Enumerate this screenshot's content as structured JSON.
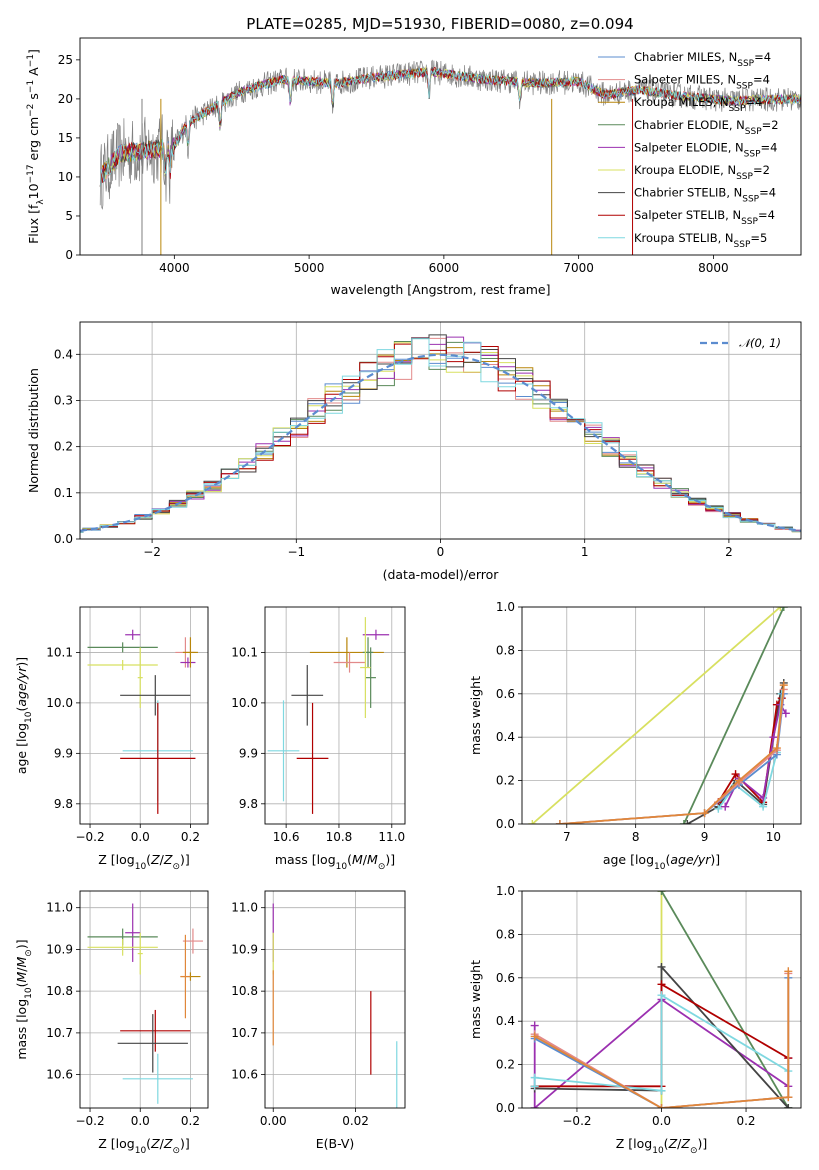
{
  "figure": {
    "title": "PLATE=0285, MJD=51930, FIBERID=0080, z=0.094"
  },
  "chart_data": [
    {
      "id": "spectrum",
      "type": "line",
      "title": "PLATE=0285, MJD=51930, FIBERID=0080, z=0.094",
      "xlabel": "wavelength [Angstrom, rest frame]",
      "ylabel": "Flux [f_λ 10^-17 erg cm^-2 s^-1 A^-1]",
      "xlim": [
        3300,
        8650
      ],
      "ylim": [
        0,
        27.8
      ],
      "xticks": [
        4000,
        5000,
        6000,
        7000,
        8000
      ],
      "yticks": [
        0,
        5,
        10,
        15,
        20,
        25
      ],
      "grid": false,
      "legend_position": "right",
      "data_color": "#808080",
      "series": [
        {
          "name": "Chabrier MILES, N_SSP=4",
          "color": "#5b8ccf"
        },
        {
          "name": "Salpeter MILES, N_SSP=4",
          "color": "#e28a8a"
        },
        {
          "name": "Kroupa MILES, N_SSP=4",
          "color": "#b8860b"
        },
        {
          "name": "Chabrier ELODIE, N_SSP=2",
          "color": "#5a8a5a"
        },
        {
          "name": "Salpeter ELODIE, N_SSP=4",
          "color": "#9b30b0"
        },
        {
          "name": "Kroupa ELODIE, N_SSP=2",
          "color": "#d8e060"
        },
        {
          "name": "Chabrier STELIB, N_SSP=4",
          "color": "#444444"
        },
        {
          "name": "Salpeter STELIB, N_SSP=4",
          "color": "#b00000"
        },
        {
          "name": "Kroupa STELIB, N_SSP=5",
          "color": "#7fd8e0"
        }
      ],
      "continuum": [
        [
          3450,
          10
        ],
        [
          3600,
          13
        ],
        [
          3850,
          13.5
        ],
        [
          4000,
          14
        ],
        [
          4100,
          17
        ],
        [
          4300,
          19
        ],
        [
          4500,
          21
        ],
        [
          4800,
          22.5
        ],
        [
          5200,
          22
        ],
        [
          5500,
          22.8
        ],
        [
          5900,
          23.5
        ],
        [
          6300,
          22.5
        ],
        [
          6700,
          22
        ],
        [
          7000,
          22.2
        ],
        [
          7200,
          20.5
        ],
        [
          7450,
          21.2
        ],
        [
          7700,
          20.5
        ],
        [
          8100,
          19.8
        ],
        [
          8650,
          20
        ]
      ]
    },
    {
      "id": "residuals",
      "type": "line",
      "xlabel": "(data-model)/error",
      "ylabel": "Normed distribution",
      "xlim": [
        -2.5,
        2.5
      ],
      "ylim": [
        0,
        0.47
      ],
      "xticks": [
        -2,
        -1,
        0,
        1,
        2
      ],
      "yticks": [
        0.0,
        0.1,
        0.2,
        0.3,
        0.4
      ],
      "grid": true,
      "legend": "𝒩(0, 1)",
      "legend_position": "top-right"
    },
    {
      "id": "age-vs-z",
      "type": "scatter",
      "xlabel": "Z [log10(Z/Z☉)]",
      "ylabel": "age [log10(age/yr)]",
      "xlim": [
        -0.24,
        0.27
      ],
      "ylim": [
        9.76,
        10.19
      ],
      "xticks": [
        -0.2,
        0.0,
        0.2
      ],
      "yticks": [
        9.8,
        9.9,
        10.0,
        10.1
      ],
      "grid": true,
      "points": [
        {
          "x": -0.03,
          "y": 10.135,
          "xerr": 0.03,
          "yerr": 0.01,
          "color": "#9b30b0"
        },
        {
          "x": -0.07,
          "y": 10.11,
          "xerr": 0.14,
          "yerr": 0.01,
          "color": "#5a8a5a"
        },
        {
          "x": 0.0,
          "y": 10.05,
          "xerr": 0.01,
          "yerr": 0.06,
          "color": "#d8e060"
        },
        {
          "x": -0.07,
          "y": 10.075,
          "xerr": 0.14,
          "yerr": 0.01,
          "color": "#d8e060"
        },
        {
          "x": 0.18,
          "y": 10.1,
          "xerr": 0.04,
          "yerr": 0.03,
          "color": "#e28a8a"
        },
        {
          "x": 0.19,
          "y": 10.08,
          "xerr": 0.03,
          "yerr": 0.01,
          "color": "#9b30b0"
        },
        {
          "x": 0.06,
          "y": 10.015,
          "xerr": 0.14,
          "yerr": 0.04,
          "color": "#444444"
        },
        {
          "x": 0.07,
          "y": 9.905,
          "xerr": 0.14,
          "yerr": 0.1,
          "color": "#7fd8e0"
        },
        {
          "x": 0.07,
          "y": 9.89,
          "xerr": 0.15,
          "yerr": 0.11,
          "color": "#b00000"
        },
        {
          "x": 0.2,
          "y": 10.1,
          "xerr": 0.03,
          "yerr": 0.03,
          "color": "#b8860b"
        }
      ]
    },
    {
      "id": "age-vs-mass",
      "type": "scatter",
      "xlabel": "mass [log10(M/M☉)]",
      "ylabel": "",
      "xlim": [
        10.52,
        11.05
      ],
      "ylim": [
        9.76,
        10.19
      ],
      "xticks": [
        10.6,
        10.8,
        11.0
      ],
      "yticks": [
        9.8,
        9.9,
        10.0,
        10.1
      ],
      "grid": true,
      "points": [
        {
          "x": 10.68,
          "y": 10.015,
          "xerr": 0.06,
          "yerr": 0.06,
          "color": "#444444"
        },
        {
          "x": 10.59,
          "y": 9.905,
          "xerr": 0.06,
          "yerr": 0.1,
          "color": "#7fd8e0"
        },
        {
          "x": 10.7,
          "y": 9.89,
          "xerr": 0.06,
          "yerr": 0.11,
          "color": "#b00000"
        },
        {
          "x": 10.83,
          "y": 10.1,
          "xerr": 0.14,
          "yerr": 0.03,
          "color": "#b8860b"
        },
        {
          "x": 10.84,
          "y": 10.08,
          "xerr": 0.06,
          "yerr": 0.02,
          "color": "#e28a8a"
        },
        {
          "x": 10.92,
          "y": 10.05,
          "xerr": 0.02,
          "yerr": 0.06,
          "color": "#5a8a5a"
        },
        {
          "x": 10.91,
          "y": 10.1,
          "xerr": 0.02,
          "yerr": 0.03,
          "color": "#5a8a5a"
        },
        {
          "x": 10.94,
          "y": 10.135,
          "xerr": 0.05,
          "yerr": 0.01,
          "color": "#9b30b0"
        },
        {
          "x": 10.9,
          "y": 10.07,
          "xerr": 0.02,
          "yerr": 0.1,
          "color": "#d8e060"
        }
      ]
    },
    {
      "id": "mass-weight-vs-age",
      "type": "line",
      "xlabel": "age [log10(age/yr)]",
      "ylabel": "mass weight",
      "xlim": [
        6.35,
        10.4
      ],
      "ylim": [
        0,
        1.0
      ],
      "xticks": [
        7,
        8,
        9,
        10
      ],
      "yticks": [
        0.0,
        0.2,
        0.4,
        0.6,
        0.8,
        1.0
      ],
      "grid": true,
      "series": [
        {
          "name": "Kroupa ELODIE",
          "color": "#d8e060",
          "x": [
            6.5,
            10.1
          ],
          "y": [
            0.0,
            1.0
          ]
        },
        {
          "name": "Chabrier ELODIE",
          "color": "#5a8a5a",
          "x": [
            8.7,
            10.15
          ],
          "y": [
            0.0,
            1.0
          ]
        },
        {
          "name": "Chabrier STELIB",
          "color": "#444444",
          "x": [
            8.75,
            9.2,
            9.45,
            9.85,
            10.1,
            10.15
          ],
          "y": [
            0.0,
            0.08,
            0.2,
            0.09,
            0.6,
            0.65
          ]
        },
        {
          "name": "Salpeter STELIB",
          "color": "#b00000",
          "x": [
            9.2,
            9.45,
            9.85,
            10.05,
            10.12
          ],
          "y": [
            0.1,
            0.23,
            0.1,
            0.55,
            0.58
          ]
        },
        {
          "name": "Salpeter ELODIE",
          "color": "#9b30b0",
          "x": [
            9.3,
            9.5,
            9.85,
            10.0,
            10.1,
            10.18
          ],
          "y": [
            0.08,
            0.21,
            0.12,
            0.4,
            0.55,
            0.51
          ]
        },
        {
          "name": "Kroupa STELIB",
          "color": "#7fd8e0",
          "x": [
            9.2,
            9.45,
            9.85,
            10.05,
            10.12
          ],
          "y": [
            0.07,
            0.18,
            0.08,
            0.33,
            0.6
          ]
        },
        {
          "name": "Chabrier MILES",
          "color": "#5b8ccf",
          "x": [
            6.9,
            9.0,
            9.5,
            10.05,
            10.15
          ],
          "y": [
            0.0,
            0.05,
            0.18,
            0.32,
            0.6
          ]
        },
        {
          "name": "Salpeter MILES",
          "color": "#e28a8a",
          "x": [
            6.9,
            9.0,
            9.5,
            10.05,
            10.15
          ],
          "y": [
            0.0,
            0.05,
            0.19,
            0.34,
            0.62
          ]
        },
        {
          "name": "Kroupa MILES",
          "color": "#e0873a",
          "x": [
            6.9,
            9.0,
            9.5,
            10.05,
            10.15
          ],
          "y": [
            0.0,
            0.05,
            0.2,
            0.35,
            0.64
          ]
        }
      ]
    },
    {
      "id": "mass-vs-z",
      "type": "scatter",
      "xlabel": "Z [log10(Z/Z☉)]",
      "ylabel": "mass [log10(M/M☉)]",
      "xlim": [
        -0.24,
        0.27
      ],
      "ylim": [
        10.52,
        11.04
      ],
      "xticks": [
        -0.2,
        0.0,
        0.2
      ],
      "yticks": [
        10.6,
        10.7,
        10.8,
        10.9,
        11.0
      ],
      "grid": true,
      "points": [
        {
          "x": -0.03,
          "y": 10.94,
          "xerr": 0.03,
          "yerr": 0.07,
          "color": "#9b30b0"
        },
        {
          "x": -0.07,
          "y": 10.93,
          "xerr": 0.14,
          "yerr": 0.02,
          "color": "#5a8a5a"
        },
        {
          "x": -0.07,
          "y": 10.905,
          "xerr": 0.14,
          "yerr": 0.02,
          "color": "#d8e060"
        },
        {
          "x": 0.0,
          "y": 10.89,
          "xerr": 0.01,
          "yerr": 0.05,
          "color": "#d8e060"
        },
        {
          "x": 0.21,
          "y": 10.92,
          "xerr": 0.04,
          "yerr": 0.03,
          "color": "#e28a8a"
        },
        {
          "x": 0.2,
          "y": 10.835,
          "xerr": 0.04,
          "yerr": 0.01,
          "color": "#b8860b"
        },
        {
          "x": 0.18,
          "y": 10.835,
          "xerr": 0.02,
          "yerr": 0.1,
          "color": "#e0873a"
        },
        {
          "x": 0.06,
          "y": 10.705,
          "xerr": 0.14,
          "yerr": 0.05,
          "color": "#b00000"
        },
        {
          "x": 0.05,
          "y": 10.675,
          "xerr": 0.14,
          "yerr": 0.07,
          "color": "#444444"
        },
        {
          "x": 0.07,
          "y": 10.59,
          "xerr": 0.14,
          "yerr": 0.06,
          "color": "#7fd8e0"
        }
      ]
    },
    {
      "id": "mass-vs-ebv",
      "type": "scatter",
      "xlabel": "E(B-V)",
      "ylabel": "",
      "xlim": [
        -0.002,
        0.032
      ],
      "ylim": [
        10.52,
        11.04
      ],
      "xticks": [
        0.0,
        0.02
      ],
      "yticks": [
        10.6,
        10.7,
        10.8,
        10.9,
        11.0
      ],
      "grid": true,
      "points": [
        {
          "x": 0.0,
          "y": 10.94,
          "xerr": 0,
          "yerr": 0.07,
          "color": "#9b30b0"
        },
        {
          "x": 0.0,
          "y": 10.89,
          "xerr": 0,
          "yerr": 0.05,
          "color": "#d8e060"
        },
        {
          "x": 0.0,
          "y": 10.76,
          "xerr": 0,
          "yerr": 0.09,
          "color": "#e0873a"
        },
        {
          "x": 0.0237,
          "y": 10.7,
          "xerr": 0,
          "yerr": 0.1,
          "color": "#b00000"
        },
        {
          "x": 0.03,
          "y": 10.6,
          "xerr": 0,
          "yerr": 0.08,
          "color": "#7fd8e0"
        }
      ]
    },
    {
      "id": "mass-weight-vs-z",
      "type": "line",
      "xlabel": "Z [log10(Z/Z☉)]",
      "ylabel": "mass weight",
      "xlim": [
        -0.33,
        0.33
      ],
      "ylim": [
        0,
        1.0
      ],
      "xticks": [
        -0.2,
        0.0,
        0.2
      ],
      "yticks": [
        0.0,
        0.2,
        0.4,
        0.6,
        0.8,
        1.0
      ],
      "grid": true,
      "series": [
        {
          "name": "Kroupa ELODIE",
          "color": "#d8e060",
          "x": [
            0.0,
            0.0
          ],
          "y": [
            0.0,
            1.0
          ]
        },
        {
          "name": "Chabrier ELODIE",
          "color": "#5a8a5a",
          "x": [
            0.0,
            0.3
          ],
          "y": [
            1.0,
            0.0
          ]
        },
        {
          "name": "Salpeter ELODIE",
          "color": "#9b30b0",
          "x": [
            -0.3,
            -0.3,
            0.0,
            0.3,
            0.3
          ],
          "y": [
            0.38,
            0.0,
            0.5,
            0.1,
            0.23
          ]
        },
        {
          "name": "Chabrier STELIB",
          "color": "#444444",
          "x": [
            -0.3,
            0.0,
            0.0,
            0.3
          ],
          "y": [
            0.09,
            0.08,
            0.65,
            0.0
          ]
        },
        {
          "name": "Salpeter STELIB",
          "color": "#b00000",
          "x": [
            -0.3,
            0.0,
            0.0,
            0.3
          ],
          "y": [
            0.1,
            0.1,
            0.57,
            0.23
          ]
        },
        {
          "name": "Kroupa STELIB",
          "color": "#7fd8e0",
          "x": [
            -0.3,
            -0.3,
            0.0,
            0.0,
            0.3
          ],
          "y": [
            0.1,
            0.14,
            0.08,
            0.52,
            0.17
          ]
        },
        {
          "name": "Chabrier MILES",
          "color": "#5b8ccf",
          "x": [
            -0.3,
            0.0,
            0.3,
            0.3
          ],
          "y": [
            0.32,
            0.0,
            0.05,
            0.6
          ]
        },
        {
          "name": "Salpeter MILES",
          "color": "#e28a8a",
          "x": [
            -0.3,
            0.0,
            0.3,
            0.3
          ],
          "y": [
            0.34,
            0.0,
            0.05,
            0.62
          ]
        },
        {
          "name": "Kroupa MILES",
          "color": "#e0873a",
          "x": [
            -0.3,
            0.0,
            0.3,
            0.3
          ],
          "y": [
            0.33,
            0.0,
            0.05,
            0.63
          ]
        }
      ]
    }
  ]
}
